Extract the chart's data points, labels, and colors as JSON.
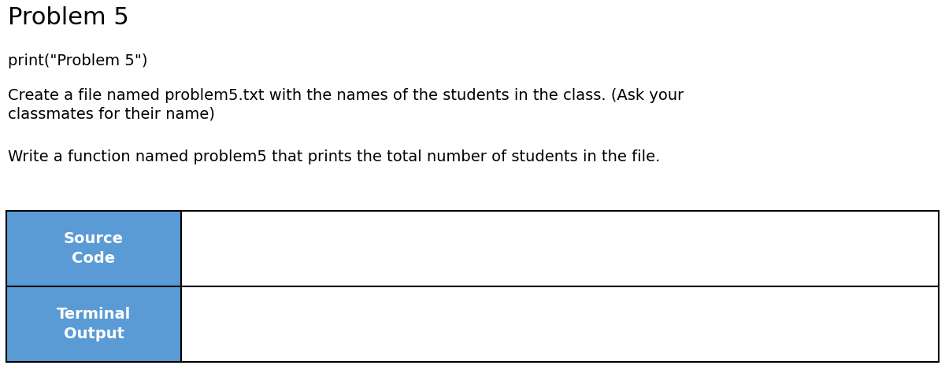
{
  "title": "Problem 5",
  "line1": "print(\"Problem 5\")",
  "para1": "Create a file named problem5.txt with the names of the students in the class. (Ask your\nclassmates for their name)",
  "para2": "Write a function named problem5 that prints the total number of students in the file.",
  "row1_label": "Source\nCode",
  "row2_label": "Terminal\nOutput",
  "label_bg_color": "#5B9BD5",
  "label_text_color": "#FFFFFF",
  "table_border_color": "#000000",
  "bg_color": "#FFFFFF",
  "title_fontsize": 22,
  "body_fontsize": 14,
  "label_fontsize": 14,
  "fig_width": 12.0,
  "fig_height": 4.83
}
